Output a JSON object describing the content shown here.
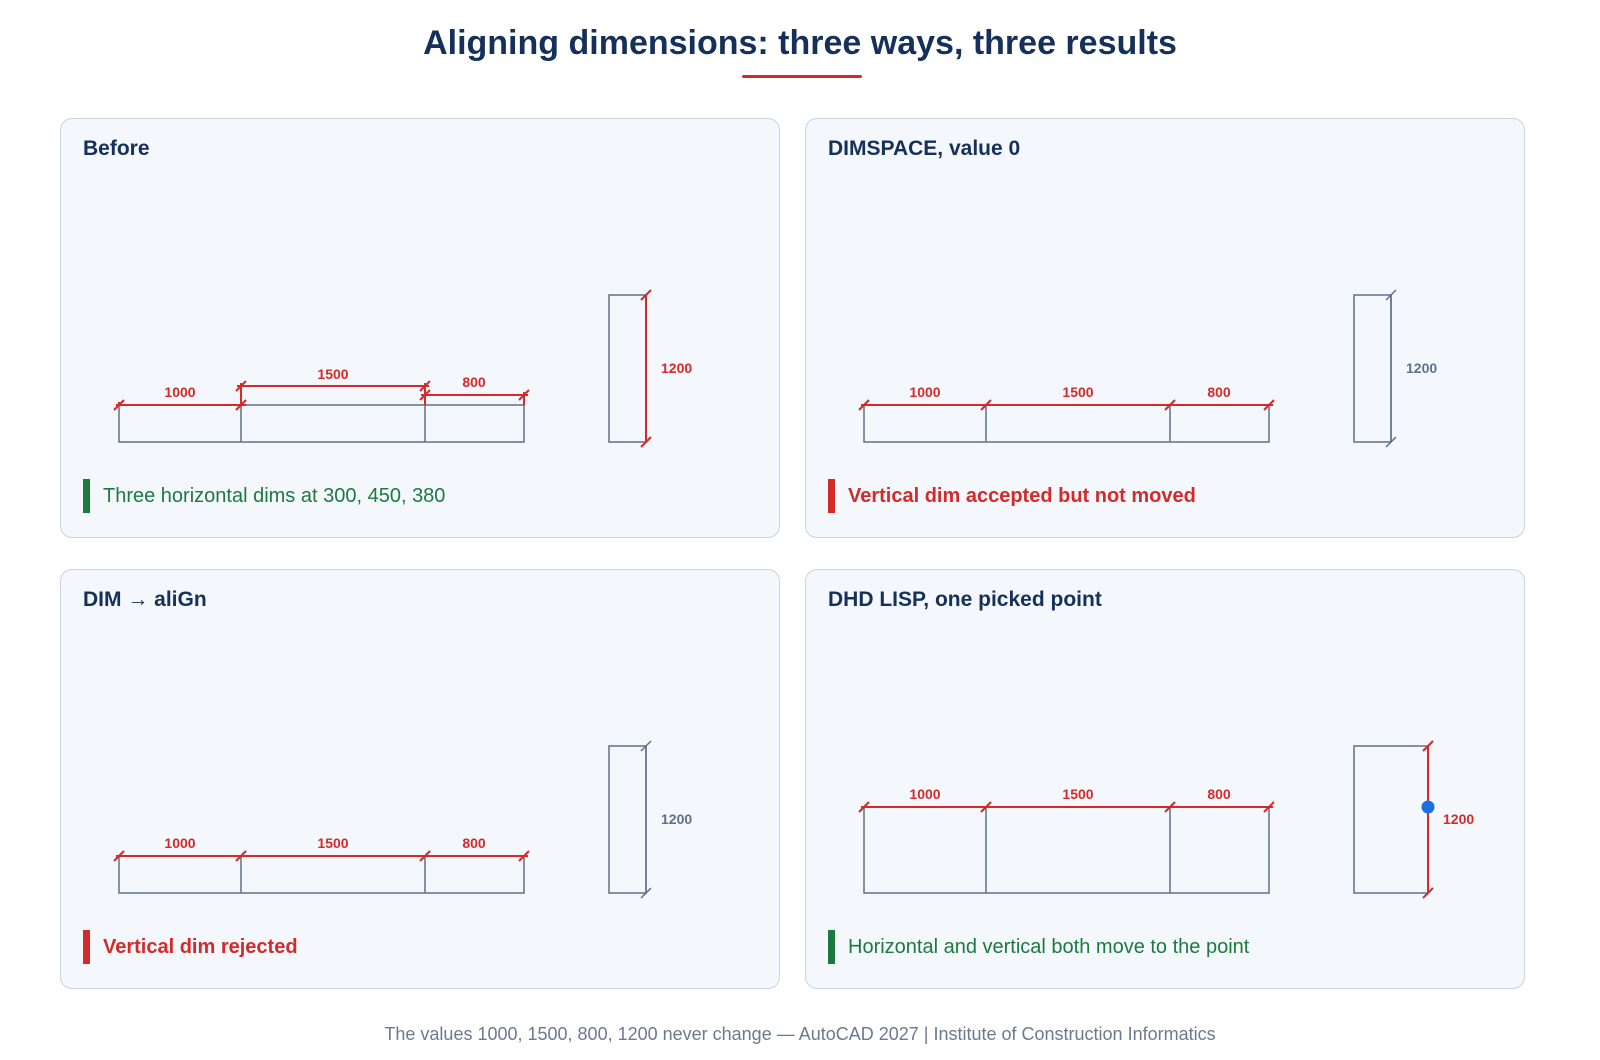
{
  "title": "Aligning dimensions: three ways, three results",
  "footer": "The values 1000, 1500, 800, 1200 never change — AutoCAD 2027 | Institute of Construction Informatics",
  "colors": {
    "navy": "#15305a",
    "red": "#d42a2a",
    "green": "#1c7a3f",
    "outline": "#5f7088",
    "blue_point": "#1f6fe0"
  },
  "panels": [
    {
      "title": "Before",
      "note": "Three horizontal dims at 300, 450, 380",
      "note_status": "ok",
      "dims": {
        "d1": "1000",
        "d2": "1500",
        "d3": "800",
        "v": "1200"
      },
      "vertical_dim_style": "red"
    },
    {
      "title": "DIMSPACE, value 0",
      "note": "Vertical dim accepted but not moved",
      "note_status": "bad",
      "dims": {
        "d1": "1000",
        "d2": "1500",
        "d3": "800",
        "v": "1200"
      },
      "vertical_dim_style": "gray"
    },
    {
      "title": "DIM → aliGn",
      "note": "Vertical dim rejected",
      "note_status": "bad",
      "dims": {
        "d1": "1000",
        "d2": "1500",
        "d3": "800",
        "v": "1200"
      },
      "vertical_dim_style": "gray"
    },
    {
      "title": "DHD LISP, one picked point",
      "note": "Horizontal and vertical both move to the point",
      "note_status": "ok",
      "dims": {
        "d1": "1000",
        "d2": "1500",
        "d3": "800",
        "v": "1200"
      },
      "vertical_dim_style": "red",
      "picked_point_icon": "picked-point-marker"
    }
  ]
}
